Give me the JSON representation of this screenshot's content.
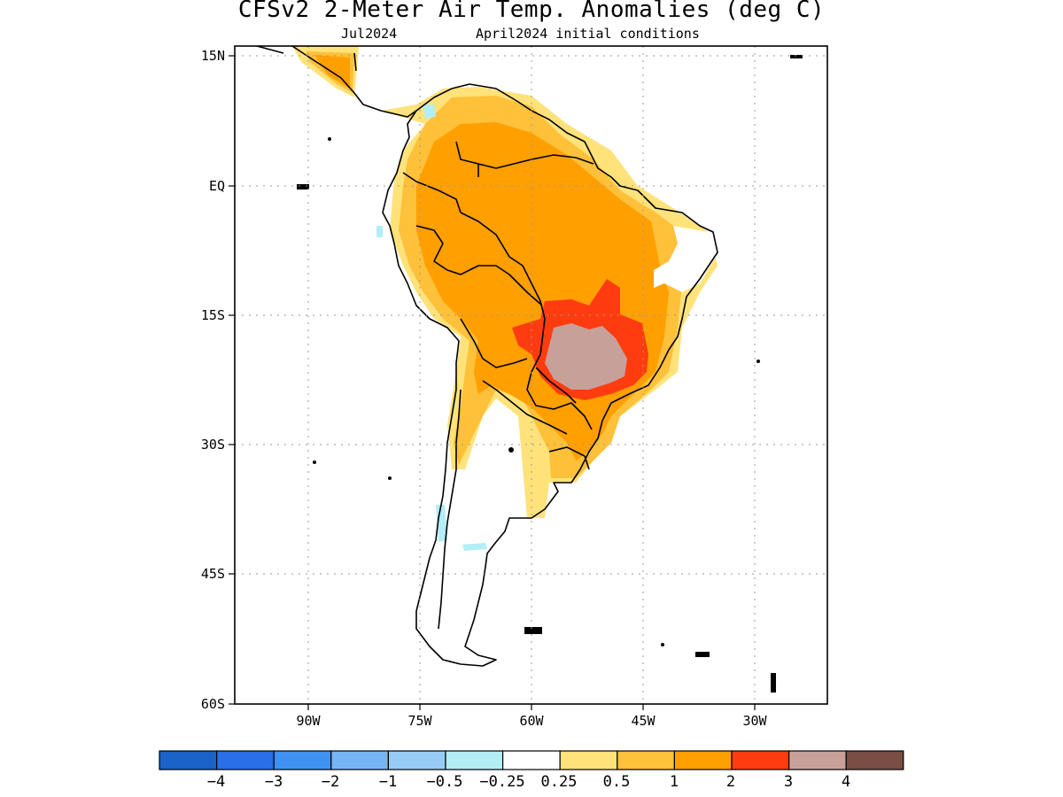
{
  "title": "CFSv2 2-Meter Air Temp. Anomalies (deg C)",
  "subtitle_left": "Jul2024",
  "subtitle_right": "April2024 initial conditions",
  "map": {
    "lat_ticks": [
      "15N",
      "EQ",
      "15S",
      "30S",
      "45S",
      "60S"
    ],
    "lon_ticks": [
      "90W",
      "75W",
      "60W",
      "45W",
      "30W"
    ]
  },
  "colorbar": {
    "colors": [
      "#1a62c8",
      "#2a6ee8",
      "#3f92f2",
      "#76b5f5",
      "#96ccf6",
      "#b3eef6",
      "#ffffff",
      "#ffe27a",
      "#ffc03a",
      "#ff9f00",
      "#ff3c10",
      "#c8a09a",
      "#7a4e44"
    ],
    "labels": [
      "−4",
      "−3",
      "−2",
      "−1",
      "−0.5",
      "−0.25",
      "0.25",
      "0.5",
      "1",
      "2",
      "3",
      "4"
    ]
  }
}
